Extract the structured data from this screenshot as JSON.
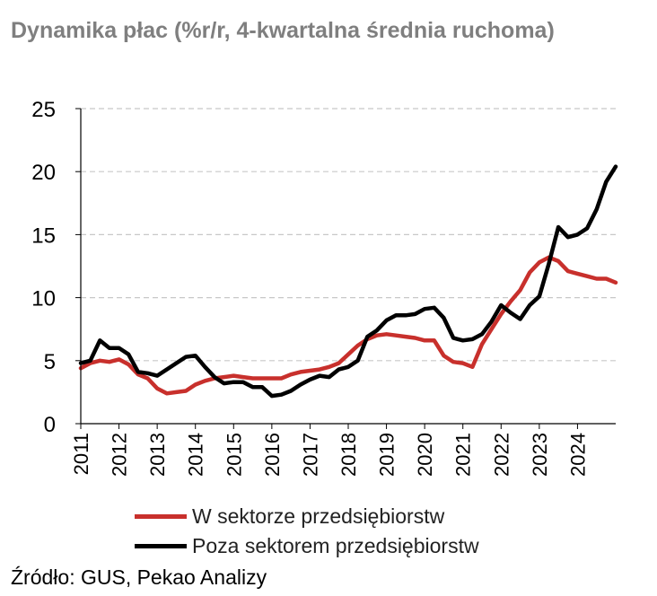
{
  "chart_data": {
    "type": "line",
    "title": "Dynamika płac (%r/r, 4-kwartalna średnia ruchoma)",
    "ylim": [
      0,
      25
    ],
    "yticks": [
      0,
      5,
      10,
      15,
      20,
      25
    ],
    "x_labels": [
      "2011",
      "2012",
      "2013",
      "2014",
      "2015",
      "2016",
      "2017",
      "2018",
      "2019",
      "2020",
      "2021",
      "2022",
      "2023",
      "2024"
    ],
    "x_start": 2011.0,
    "x_step": 0.25,
    "grid": "horizontal-dashed",
    "legend_placement": "bottom",
    "series": [
      {
        "name": "W sektorze przedsiębiorstw",
        "color": "#c8302c",
        "values": [
          4.4,
          4.8,
          5.0,
          4.9,
          5.1,
          4.7,
          3.9,
          3.6,
          2.8,
          2.4,
          2.5,
          2.6,
          3.1,
          3.4,
          3.6,
          3.7,
          3.8,
          3.7,
          3.6,
          3.6,
          3.6,
          3.6,
          3.9,
          4.1,
          4.2,
          4.3,
          4.5,
          4.8,
          5.5,
          6.2,
          6.7,
          7.0,
          7.1,
          7.0,
          6.9,
          6.8,
          6.6,
          6.6,
          5.4,
          4.9,
          4.8,
          4.5,
          6.3,
          7.5,
          8.7,
          9.7,
          10.6,
          12.0,
          12.8,
          13.2,
          12.9,
          12.1,
          11.9,
          11.7,
          11.5,
          11.5,
          11.2
        ]
      },
      {
        "name": "Poza sektorem przedsiębiorstw",
        "color": "#000000",
        "values": [
          4.8,
          5.0,
          6.6,
          6.0,
          6.0,
          5.5,
          4.1,
          4.0,
          3.8,
          4.3,
          4.8,
          5.3,
          5.4,
          4.5,
          3.7,
          3.2,
          3.3,
          3.3,
          2.9,
          2.9,
          2.2,
          2.3,
          2.6,
          3.1,
          3.5,
          3.8,
          3.7,
          4.3,
          4.5,
          5.0,
          6.9,
          7.4,
          8.2,
          8.6,
          8.6,
          8.7,
          9.1,
          9.2,
          8.4,
          6.8,
          6.6,
          6.7,
          7.1,
          8.1,
          9.4,
          8.8,
          8.3,
          9.4,
          10.1,
          12.7,
          15.6,
          14.8,
          15.0,
          15.5,
          17.0,
          19.2,
          20.4
        ]
      }
    ]
  },
  "source": "Źródło: GUS, Pekao Analizy"
}
